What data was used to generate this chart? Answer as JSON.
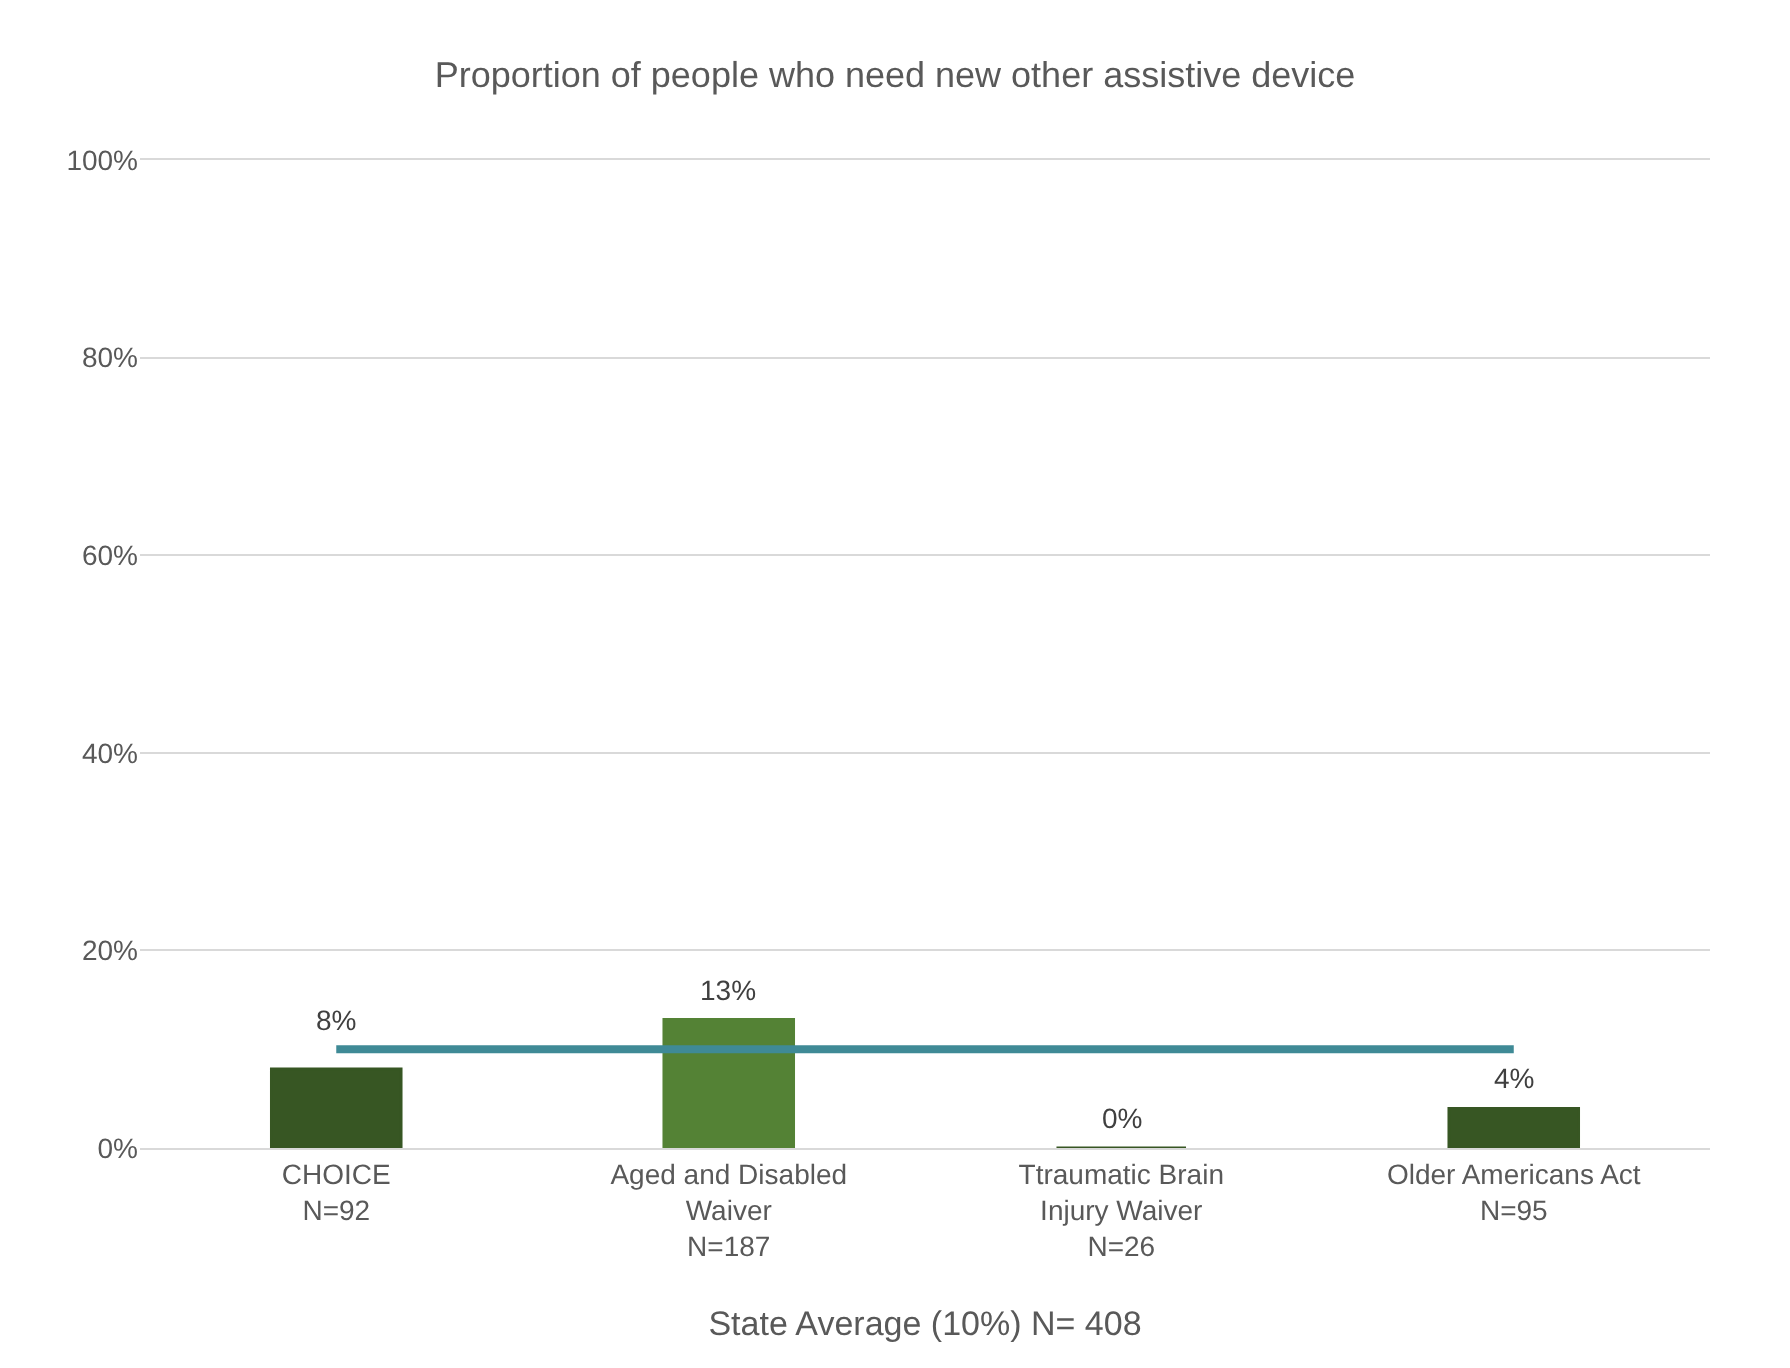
{
  "chart_data": {
    "type": "bar",
    "title": "Proportion of people who need new other assistive device",
    "xlabel": "State Average (10%) N= 408",
    "categories": [
      "CHOICE\nN=92",
      "Aged and Disabled\nWaiver\nN=187",
      "Ttraumatic Brain\nInjury Waiver\nN=26",
      "Older Americans Act\nN=95"
    ],
    "series": [
      {
        "colors": [
          "#375623",
          "#548235",
          "#375623",
          "#375623"
        ],
        "values": [
          8,
          13,
          0,
          4
        ],
        "value_labels": [
          "8%",
          "13%",
          "0%",
          "4%"
        ]
      },
      {
        "type": "line",
        "color": "#3f8a96",
        "values": [
          10,
          10,
          10,
          10
        ]
      }
    ],
    "ylim": [
      0,
      100
    ],
    "yticks": [
      {
        "value": 0,
        "label": "0%"
      },
      {
        "value": 20,
        "label": "20%"
      },
      {
        "value": 40,
        "label": "40%"
      },
      {
        "value": 60,
        "label": "60%"
      },
      {
        "value": 80,
        "label": "80%"
      },
      {
        "value": 100,
        "label": "100%"
      }
    ],
    "grid": "y"
  }
}
